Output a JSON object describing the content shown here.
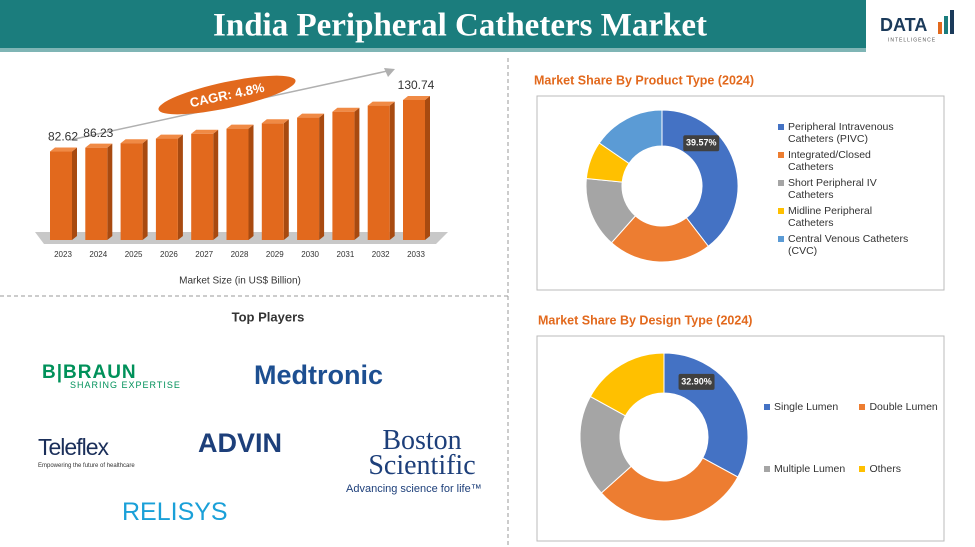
{
  "header": {
    "title": "India Peripheral Catheters Market",
    "logo": "DATA",
    "logo_sub": "INTELLIGENCE"
  },
  "top_players": {
    "title": "Top Players",
    "players": [
      {
        "name": "B|BRAUN",
        "tagline": "SHARING EXPERTISE"
      },
      {
        "name": "Medtronic"
      },
      {
        "name": "Teleflex",
        "tagline": "Empowering the future of healthcare"
      },
      {
        "name": "ADVIN"
      },
      {
        "name": "Boston Scientific",
        "tagline": "Advancing science for life™"
      },
      {
        "name": "RELISYS"
      }
    ]
  },
  "chart_data": [
    {
      "type": "bar",
      "xlabel": "Market Size (in US$ Billion)",
      "annotation": "CAGR: 4.8%",
      "color": "#e2691d",
      "categories": [
        "2023",
        "2024",
        "2025",
        "2026",
        "2027",
        "2028",
        "2029",
        "2030",
        "2031",
        "2032",
        "2033"
      ],
      "values": [
        82.62,
        86.23,
        90.4,
        94.7,
        99.2,
        104.0,
        109.0,
        114.3,
        119.8,
        125.5,
        130.74
      ],
      "value_labels": [
        "82.62",
        "86.23",
        null,
        null,
        null,
        null,
        null,
        null,
        null,
        null,
        "130.74"
      ]
    },
    {
      "type": "pie",
      "title": "Market Share By Product Type (2024)",
      "legend": "right",
      "legend_columns": 1,
      "categories": [
        "Peripheral Intravenous Catheters (PIVC)",
        "Integrated/Closed Catheters",
        "Short Peripheral IV Catheters",
        "Midline Peripheral Catheters",
        "Central Venous Catheters (CVC)"
      ],
      "values": [
        39.57,
        22.0,
        15.0,
        8.0,
        15.43
      ],
      "value_labels": [
        "39.57%",
        null,
        null,
        null,
        null
      ],
      "colors": [
        "#4472c4",
        "#ed7d31",
        "#a5a5a5",
        "#ffc000",
        "#5b9bd5"
      ]
    },
    {
      "type": "pie",
      "title": "Market Share By Design Type (2024)",
      "legend": "right",
      "legend_columns": 2,
      "categories": [
        "Single Lumen",
        "Double Lumen",
        "Multiple Lumen",
        "Others"
      ],
      "values": [
        32.9,
        30.5,
        19.6,
        17.0
      ],
      "value_labels": [
        "32.90%",
        null,
        null,
        null
      ],
      "colors": [
        "#4472c4",
        "#ed7d31",
        "#a5a5a5",
        "#ffc000"
      ]
    }
  ]
}
